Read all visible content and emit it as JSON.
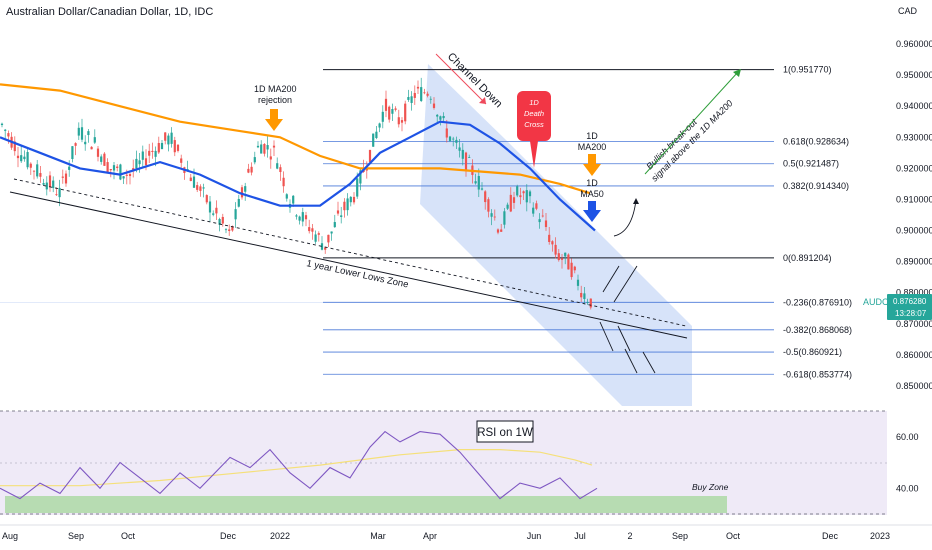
{
  "header": {
    "title": "Australian Dollar/Canadian Dollar, 1D, IDC",
    "currency": "CAD"
  },
  "price_tag": {
    "symbol": "AUDCAD",
    "price": "0.876280",
    "countdown": "13:28:07",
    "color": "#26a69a"
  },
  "annotations": {
    "ma200_rejection_line1": "1D MA200",
    "ma200_rejection_line2": "rejection",
    "channel_down": "Channel Down",
    "death_cross_line1": "1D",
    "death_cross_line2": "Death",
    "death_cross_line3": "Cross",
    "ma200_line1": "1D",
    "ma200_line2": "MA200",
    "ma50_line1": "1D",
    "ma50_line2": "MA50",
    "breakout_line1": "Bullish break-out",
    "breakout_line2": "signal above the 1D MA200",
    "lower_lows_zone": "1 year Lower Lows Zone",
    "rsi_title": "RSI on 1W",
    "buy_zone": "Buy Zone"
  },
  "colors": {
    "ma200": "#ff9800",
    "ma50": "#1e53e5",
    "bull_candle": "#26a69a",
    "bear_candle": "#ef5350",
    "channel_fill": "#c9d9f7",
    "rsi_line": "#7e57c2",
    "rsi_ma": "#f5e07a",
    "buy_zone": "#b7dcb2",
    "fib": "#4a79d8"
  },
  "chart_data": {
    "type": "candlestick",
    "x_axis_labels": [
      "Aug",
      "Sep",
      "Oct",
      "Dec",
      "2022",
      "Mar",
      "Apr",
      "Jun",
      "Jul",
      "2",
      "Sep",
      "Oct",
      "Dec",
      "2023"
    ],
    "y_axis": {
      "min": 0.845,
      "max": 0.965,
      "ticks": [
        "0.960000",
        "0.950000",
        "0.940000",
        "0.930000",
        "0.920000",
        "0.910000",
        "0.900000",
        "0.890000",
        "0.880000",
        "0.870000",
        "0.860000",
        "0.850000"
      ]
    },
    "fibonacci_levels": [
      {
        "label": "1(0.951770)",
        "value": 0.95177
      },
      {
        "label": "0.618(0.928634)",
        "value": 0.928634
      },
      {
        "label": "0.5(0.921487)",
        "value": 0.921487
      },
      {
        "label": "0.382(0.914340)",
        "value": 0.91434
      },
      {
        "label": "0(0.891204)",
        "value": 0.891204
      },
      {
        "label": "-0.236(0.876910)",
        "value": 0.87691
      },
      {
        "label": "-0.382(0.868068)",
        "value": 0.868068
      },
      {
        "label": "-0.5(0.860921)",
        "value": 0.860921
      },
      {
        "label": "-0.618(0.853774)",
        "value": 0.853774
      }
    ],
    "rsi": {
      "title": "RSI on 1W",
      "ticks": [
        "60.00",
        "40.00"
      ],
      "buy_zone": [
        32,
        38
      ]
    }
  }
}
